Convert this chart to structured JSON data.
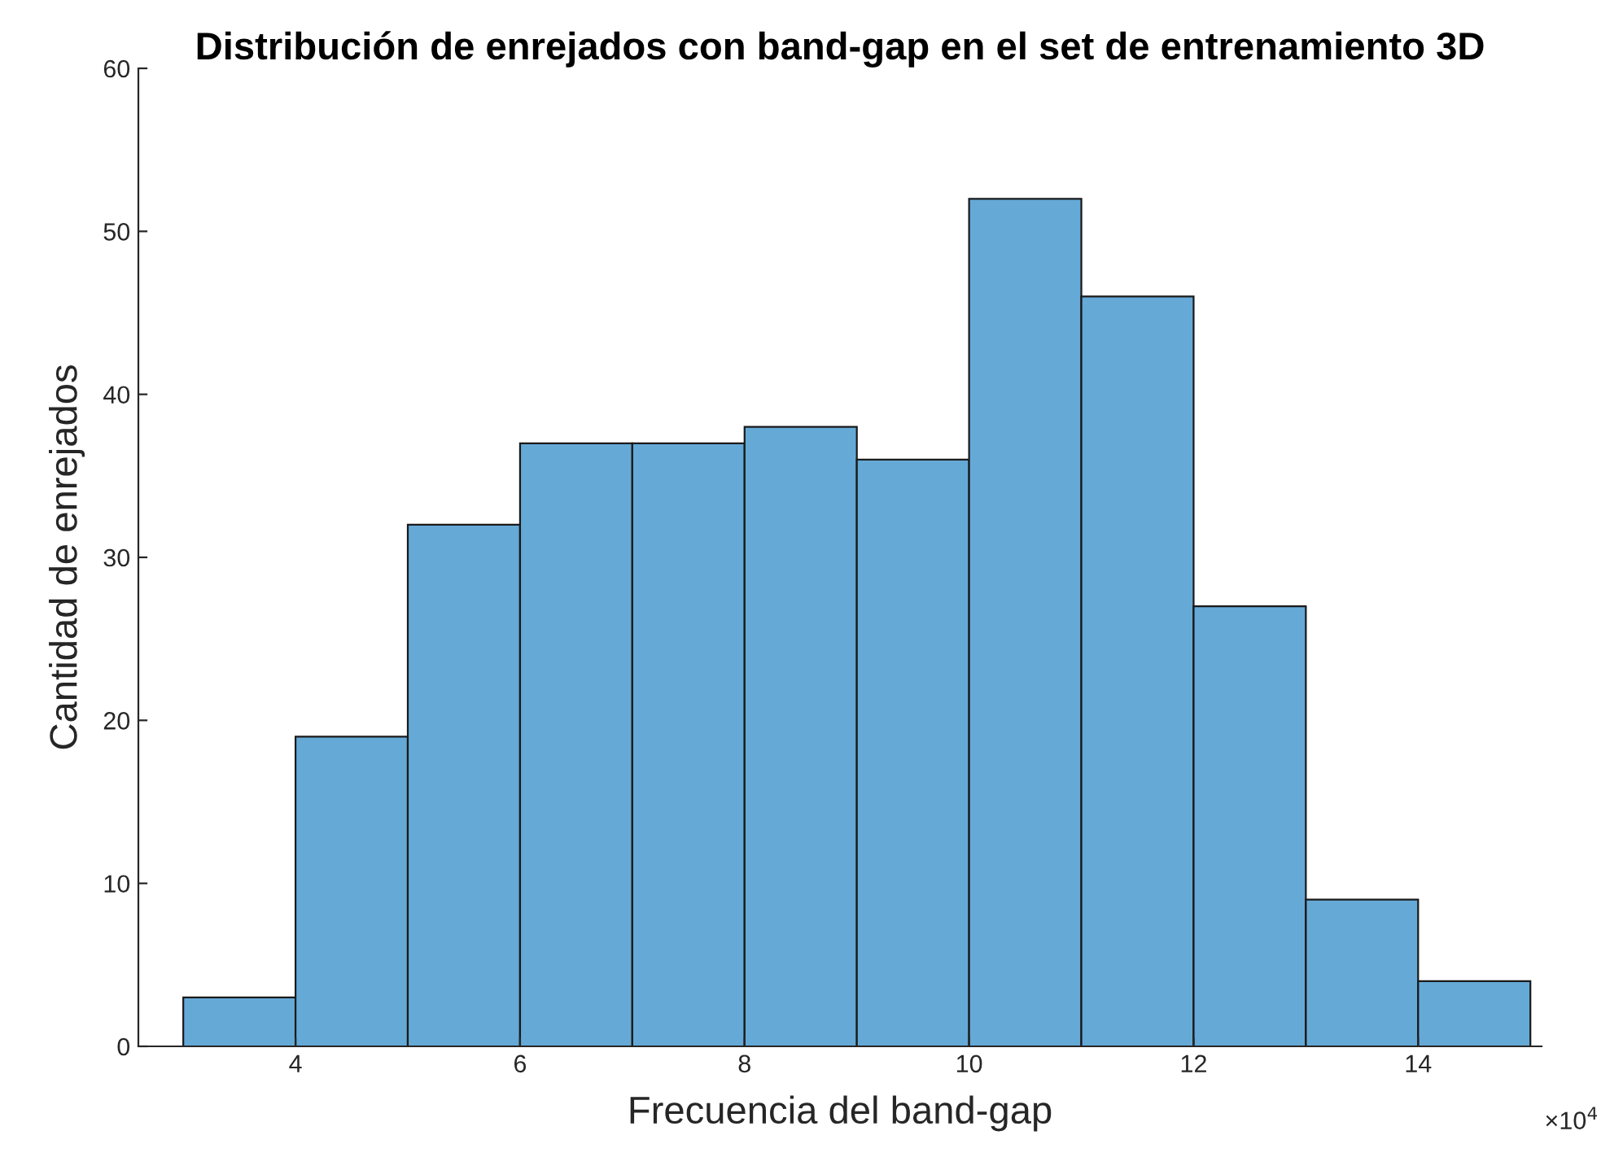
{
  "chart_data": {
    "type": "histogram",
    "title": "Distribución de enrejados con band-gap en el set de entrenamiento 3D",
    "xlabel": "Frecuencia del band-gap",
    "ylabel": "Cantidad de enrejados",
    "bins": [
      3,
      4,
      5,
      6,
      7,
      8,
      9,
      10,
      11,
      12,
      13,
      14,
      15
    ],
    "values": [
      3,
      19,
      32,
      37,
      37,
      38,
      36,
      52,
      46,
      27,
      9,
      4
    ],
    "color": "#65a9d7",
    "xlim": [
      2.6,
      15.1
    ],
    "xticks": [
      4,
      6,
      8,
      10,
      12,
      14
    ],
    "ylim": [
      0,
      60
    ],
    "yticks": [
      0,
      10,
      20,
      30,
      40,
      50,
      60
    ],
    "annotations": [
      "×10$^{4}$"
    ],
    "grid": false,
    "legend": false
  }
}
